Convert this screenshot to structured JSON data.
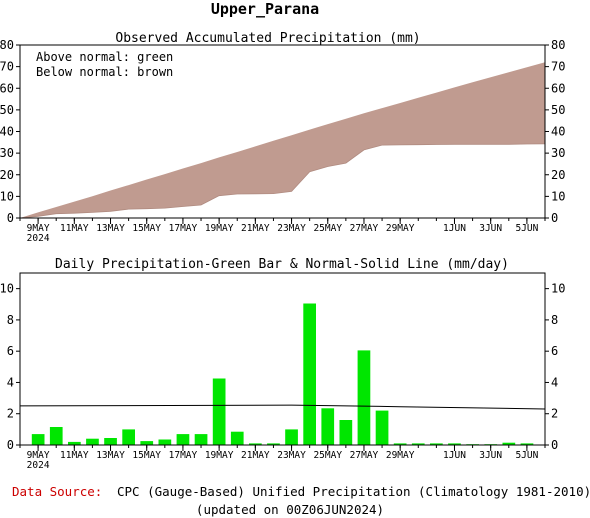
{
  "title": "Upper_Parana",
  "footer": {
    "source_label": "Data Source:",
    "source_text": "CPC (Gauge-Based) Unified Precipitation (Climatology 1981-2010)",
    "updated": "(updated on 00Z06JUN2024)"
  },
  "colors": {
    "above": "#00cc00",
    "below": "#c09b90",
    "bar": "#00e600",
    "source_label": "#cc0000"
  },
  "x_ticks": [
    {
      "label": "9MAY",
      "sub": "2024",
      "day": 1
    },
    {
      "label": "11MAY",
      "day": 3
    },
    {
      "label": "13MAY",
      "day": 5
    },
    {
      "label": "15MAY",
      "day": 7
    },
    {
      "label": "17MAY",
      "day": 9
    },
    {
      "label": "19MAY",
      "day": 11
    },
    {
      "label": "21MAY",
      "day": 13
    },
    {
      "label": "23MAY",
      "day": 15
    },
    {
      "label": "25MAY",
      "day": 17
    },
    {
      "label": "27MAY",
      "day": 19
    },
    {
      "label": "29MAY",
      "day": 21
    },
    {
      "label": "1JUN",
      "day": 24
    },
    {
      "label": "3JUN",
      "day": 26
    },
    {
      "label": "5JUN",
      "day": 28
    }
  ],
  "chart_data": [
    {
      "type": "area",
      "title": "Observed Accumulated Precipitation (mm)",
      "legend": [
        "Above normal: green",
        "Below normal: brown"
      ],
      "legend_position": "top-left",
      "x_start": "2024-05-08",
      "x_end": "2024-06-06",
      "ylim": [
        0,
        80
      ],
      "yticks": [
        0,
        10,
        20,
        30,
        40,
        50,
        60,
        70,
        80
      ],
      "series": [
        {
          "name": "Observed",
          "dates": [
            "2024-05-08",
            "2024-05-09",
            "2024-05-10",
            "2024-05-11",
            "2024-05-12",
            "2024-05-13",
            "2024-05-14",
            "2024-05-15",
            "2024-05-16",
            "2024-05-17",
            "2024-05-18",
            "2024-05-19",
            "2024-05-20",
            "2024-05-21",
            "2024-05-22",
            "2024-05-23",
            "2024-05-24",
            "2024-05-25",
            "2024-05-26",
            "2024-05-27",
            "2024-05-28",
            "2024-05-29",
            "2024-05-30",
            "2024-05-31",
            "2024-06-01",
            "2024-06-02",
            "2024-06-03",
            "2024-06-04",
            "2024-06-05",
            "2024-06-06"
          ],
          "values": [
            0.0,
            0.8,
            2.0,
            2.2,
            2.6,
            3.1,
            4.1,
            4.3,
            4.6,
            5.3,
            6.0,
            10.3,
            11.1,
            11.2,
            11.3,
            12.3,
            21.4,
            23.8,
            25.4,
            31.5,
            33.7,
            33.8,
            33.9,
            34.0,
            34.1,
            34.1,
            34.1,
            34.1,
            34.2,
            34.3
          ]
        },
        {
          "name": "Normal",
          "dates": [
            "2024-05-08",
            "2024-05-09",
            "2024-05-10",
            "2024-05-11",
            "2024-05-12",
            "2024-05-13",
            "2024-05-14",
            "2024-05-15",
            "2024-05-16",
            "2024-05-17",
            "2024-05-18",
            "2024-05-19",
            "2024-05-20",
            "2024-05-21",
            "2024-05-22",
            "2024-05-23",
            "2024-05-24",
            "2024-05-25",
            "2024-05-26",
            "2024-05-27",
            "2024-05-28",
            "2024-05-29",
            "2024-05-30",
            "2024-05-31",
            "2024-06-01",
            "2024-06-02",
            "2024-06-03",
            "2024-06-04",
            "2024-06-05",
            "2024-06-06"
          ],
          "values": [
            0.0,
            2.6,
            5.1,
            7.6,
            10.1,
            12.7,
            15.2,
            17.8,
            20.3,
            22.9,
            25.4,
            28.0,
            30.5,
            33.1,
            35.7,
            38.3,
            40.9,
            43.4,
            45.9,
            48.4,
            50.8,
            53.2,
            55.6,
            58.0,
            60.4,
            62.8,
            65.1,
            67.4,
            69.7,
            72.0
          ]
        }
      ]
    },
    {
      "type": "bar",
      "title": "Daily Precipitation-Green Bar & Normal-Solid Line (mm/day)",
      "ylim": [
        0,
        11
      ],
      "yticks": [
        0,
        2,
        4,
        6,
        8,
        10
      ],
      "x_start": "2024-05-08",
      "x_end": "2024-06-06",
      "dates": [
        "2024-05-09",
        "2024-05-10",
        "2024-05-11",
        "2024-05-12",
        "2024-05-13",
        "2024-05-14",
        "2024-05-15",
        "2024-05-16",
        "2024-05-17",
        "2024-05-18",
        "2024-05-19",
        "2024-05-20",
        "2024-05-21",
        "2024-05-22",
        "2024-05-23",
        "2024-05-24",
        "2024-05-25",
        "2024-05-26",
        "2024-05-27",
        "2024-05-28",
        "2024-05-29",
        "2024-05-30",
        "2024-05-31",
        "2024-06-01",
        "2024-06-02",
        "2024-06-03",
        "2024-06-04",
        "2024-06-05"
      ],
      "values": [
        0.7,
        1.15,
        0.2,
        0.4,
        0.45,
        1.0,
        0.25,
        0.35,
        0.7,
        0.7,
        4.25,
        0.85,
        0.1,
        0.1,
        1.0,
        9.05,
        2.35,
        1.6,
        6.05,
        2.2,
        0.1,
        0.1,
        0.1,
        0.1,
        0.05,
        0.05,
        0.15,
        0.1
      ],
      "normal_line": {
        "dates": [
          "2024-05-08",
          "2024-05-23",
          "2024-05-29",
          "2024-06-06"
        ],
        "values": [
          2.5,
          2.55,
          2.45,
          2.3
        ]
      }
    }
  ]
}
